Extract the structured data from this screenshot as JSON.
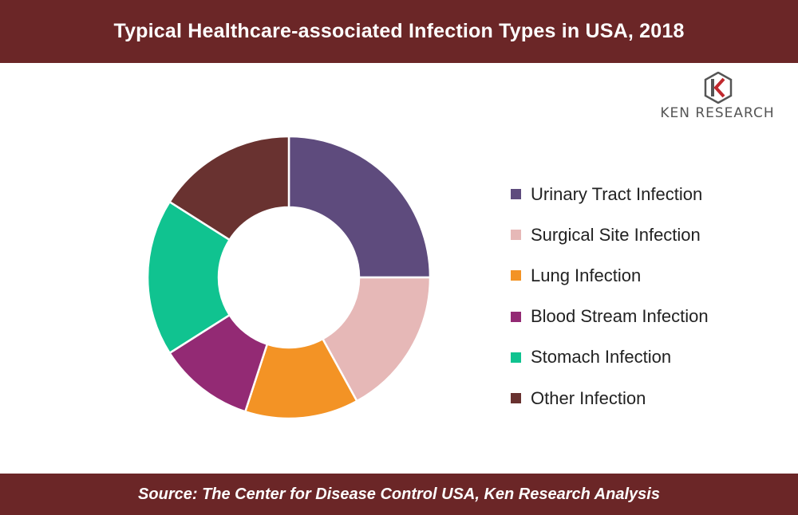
{
  "title": "Typical Healthcare-associated Infection Types in USA, 2018",
  "source": "Source: The Center for Disease Control USA, Ken Research Analysis",
  "logo": {
    "text": "KEN RESEARCH",
    "icon": "ken-research-logo-icon"
  },
  "colors": {
    "header_bg": "#6b2627",
    "footer_bg": "#6b2627"
  },
  "chart_data": {
    "type": "pie",
    "donut": true,
    "categories": [
      "Urinary Tract Infection",
      "Surgical Site Infection",
      "Lung Infection",
      "Blood Stream Infection",
      "Stomach Infection",
      "Other Infection"
    ],
    "values": [
      25,
      17,
      13,
      11,
      18,
      16
    ],
    "colors": [
      "#5e4b7d",
      "#e6b8b7",
      "#f39325",
      "#932a74",
      "#10c390",
      "#693230"
    ],
    "legend_position": "right"
  }
}
